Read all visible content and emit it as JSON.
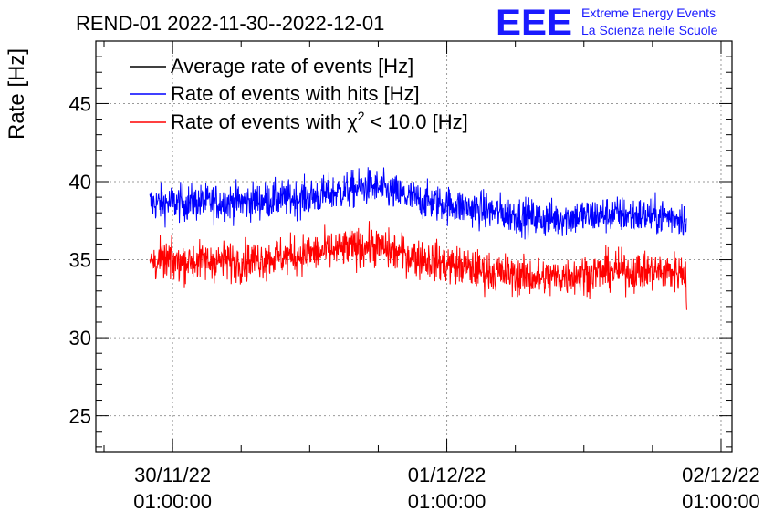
{
  "chart_data": {
    "type": "line",
    "title": "REND-01 2022-11-30--2022-12-01",
    "ylabel": "Rate [Hz]",
    "xlabel": "",
    "ylim": [
      22.7,
      49.0
    ],
    "xlim": [
      -0.28,
      2.04
    ],
    "y_ticks": [
      25,
      30,
      35,
      40,
      45
    ],
    "y_tick_labels": [
      "25",
      "30",
      "35",
      "40",
      "45"
    ],
    "x_ticks": [
      0,
      1,
      2
    ],
    "x_tick_labels": [
      {
        "date": "30/11/22",
        "time": "01:00:00"
      },
      {
        "date": "01/12/22",
        "time": "01:00:00"
      },
      {
        "date": "02/12/22",
        "time": "01:00:00"
      }
    ],
    "x_unit": "days since 30/11/22 01:00:00",
    "grid": true,
    "legend_position": "top-left",
    "series": [
      {
        "name": "Average rate of events [Hz]",
        "color": "#000000",
        "points": []
      },
      {
        "name": "Rate of events with hits [Hz]",
        "color": "#0000ff",
        "x_range": [
          -0.083,
          1.875
        ],
        "noise": 0.85,
        "trend": [
          [
            -0.083,
            38.6
          ],
          [
            0.25,
            38.7
          ],
          [
            0.5,
            39.0
          ],
          [
            0.72,
            39.7
          ],
          [
            0.9,
            38.8
          ],
          [
            1.12,
            38.2
          ],
          [
            1.35,
            37.6
          ],
          [
            1.6,
            37.9
          ],
          [
            1.875,
            37.7
          ]
        ]
      },
      {
        "name": "Rate of events with χ² < 10.0 [Hz]",
        "legend_parts": [
          "Rate of events with ",
          "χ",
          "2",
          " < 10.0 [Hz]"
        ],
        "color": "#ff0000",
        "x_range": [
          -0.083,
          1.875
        ],
        "noise": 0.9,
        "trend": [
          [
            -0.083,
            34.9
          ],
          [
            0.25,
            34.9
          ],
          [
            0.5,
            35.4
          ],
          [
            0.72,
            35.9
          ],
          [
            0.9,
            35.1
          ],
          [
            1.12,
            34.3
          ],
          [
            1.35,
            33.8
          ],
          [
            1.6,
            34.3
          ],
          [
            1.875,
            34.2
          ]
        ]
      }
    ]
  },
  "branding": {
    "logo_text": "EEE",
    "line1": "Extreme Energy Events",
    "line2": "La Scienza nelle Scuole",
    "color": "#1a1aff"
  }
}
